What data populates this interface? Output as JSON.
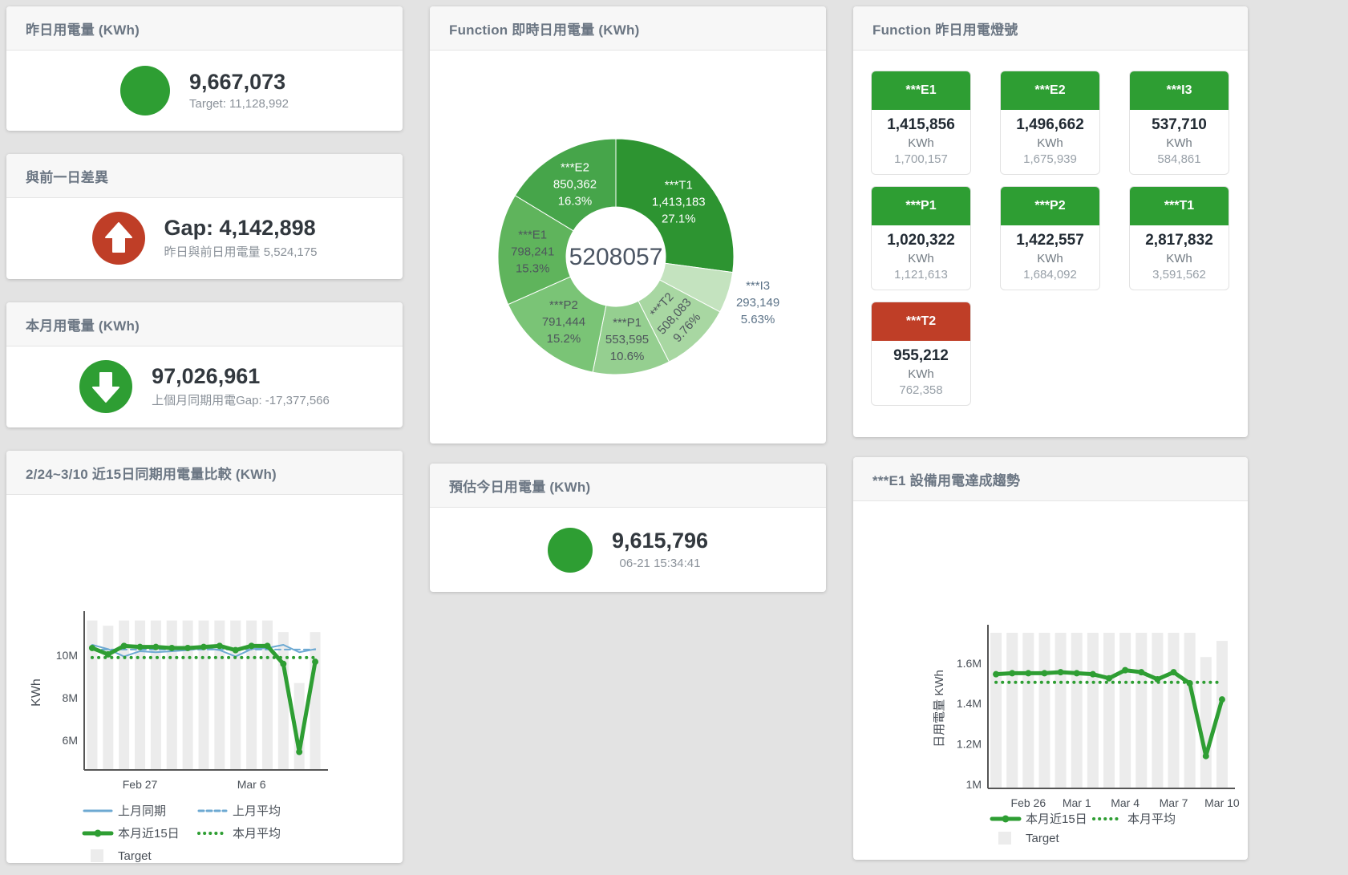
{
  "colors": {
    "green": "#2e9e33",
    "red": "#bf3e27",
    "bar_gray": "#ececec",
    "blue": "#6da9d2",
    "axis": "#555555",
    "tick_text": "#4a5058"
  },
  "cards": {
    "yesterday": {
      "title": "昨日用電量 (KWh)",
      "value": "9,667,073",
      "subtitle": "Target: 11,128,992",
      "indicator": "green-circle"
    },
    "gap": {
      "title": "與前一日差異",
      "value": "Gap: 4,142,898",
      "subtitle": "昨日與前日用電量 5,524,175",
      "indicator": "red-up-arrow"
    },
    "month": {
      "title": "本月用電量 (KWh)",
      "value": "97,026,961",
      "subtitle": "上個月同期用電Gap: -17,377,566",
      "indicator": "green-down-arrow"
    },
    "estimate": {
      "title": "預估今日用電量 (KWh)",
      "value": "9,615,796",
      "subtitle": "06-21 15:34:41",
      "indicator": "green-circle"
    }
  },
  "donut": {
    "title": "Function 即時日用電量 (KWh)",
    "center_total": "5208057",
    "segments": [
      {
        "name": "***T1",
        "value": "1,413,183",
        "pct": 27.1,
        "pct_label": "27.1%",
        "color": "#2d9431",
        "label_color": "#ffffff",
        "label_pos": "inside",
        "rotate": 0
      },
      {
        "name": "***I3",
        "value": "293,149",
        "pct": 5.63,
        "pct_label": "5.63%",
        "color": "#c4e3bf",
        "label_color": "#5b7287",
        "label_pos": "outside",
        "rotate": 0
      },
      {
        "name": "***T2",
        "value": "508,083",
        "pct": 9.76,
        "pct_label": "9.76%",
        "color": "#a8d7a2",
        "label_color": "#4e565c",
        "label_pos": "inside",
        "rotate": -48
      },
      {
        "name": "***P1",
        "value": "553,595",
        "pct": 10.6,
        "pct_label": "10.6%",
        "color": "#95cf90",
        "label_color": "#4e565c",
        "label_pos": "inside",
        "rotate": 0
      },
      {
        "name": "***P2",
        "value": "791,444",
        "pct": 15.2,
        "pct_label": "15.2%",
        "color": "#7ac476",
        "label_color": "#4e565c",
        "label_pos": "inside",
        "rotate": 0
      },
      {
        "name": "***E1",
        "value": "798,241",
        "pct": 15.3,
        "pct_label": "15.3%",
        "color": "#5fb45c",
        "label_color": "#4e565c",
        "label_pos": "inside",
        "rotate": 0
      },
      {
        "name": "***E2",
        "value": "850,362",
        "pct": 16.3,
        "pct_label": "16.3%",
        "color": "#46a54a",
        "label_color": "#ffffff",
        "label_pos": "inside",
        "rotate": 0
      }
    ]
  },
  "lights": {
    "title": "Function 昨日用電燈號",
    "status_colors": {
      "green": "#2e9e33",
      "red": "#bf3e27"
    },
    "tiles": [
      {
        "name": "***E1",
        "value": "1,415,856",
        "unit": "KWh",
        "target": "1,700,157",
        "status": "green"
      },
      {
        "name": "***E2",
        "value": "1,496,662",
        "unit": "KWh",
        "target": "1,675,939",
        "status": "green"
      },
      {
        "name": "***I3",
        "value": "537,710",
        "unit": "KWh",
        "target": "584,861",
        "status": "green"
      },
      {
        "name": "***P1",
        "value": "1,020,322",
        "unit": "KWh",
        "target": "1,121,613",
        "status": "green"
      },
      {
        "name": "***P2",
        "value": "1,422,557",
        "unit": "KWh",
        "target": "1,684,092",
        "status": "green"
      },
      {
        "name": "***T1",
        "value": "2,817,832",
        "unit": "KWh",
        "target": "3,591,562",
        "status": "green"
      },
      {
        "name": "***T2",
        "value": "955,212",
        "unit": "KWh",
        "target": "762,358",
        "status": "red"
      }
    ]
  },
  "chart_data": [
    {
      "id": "compare15",
      "type": "line+bar",
      "title": "2/24~3/10 近15日同期用電量比較 (KWh)",
      "ylabel": "KWh",
      "n_points": 15,
      "ylim": [
        4600000,
        11900000
      ],
      "yticks": [
        {
          "value": 6000000,
          "label": "6M"
        },
        {
          "value": 8000000,
          "label": "8M"
        },
        {
          "value": 10000000,
          "label": "10M"
        }
      ],
      "xticks": [
        {
          "index": 3,
          "label": "Feb 27"
        },
        {
          "index": 10,
          "label": "Mar 6"
        }
      ],
      "series": [
        {
          "name": "Target",
          "type": "bar",
          "color": "#ececec",
          "values": [
            11650000,
            11400000,
            11650000,
            11650000,
            11650000,
            11650000,
            11650000,
            11650000,
            11650000,
            11650000,
            11650000,
            11650000,
            11100000,
            8700000,
            11100000
          ]
        },
        {
          "name": "上月同期",
          "type": "line",
          "style": "solid",
          "color": "#6da9d2",
          "width": 2,
          "values": [
            10500000,
            10300000,
            9950000,
            10200000,
            10150000,
            10200000,
            10250000,
            10350000,
            10250000,
            9950000,
            10300000,
            10350000,
            10500000,
            10150000,
            10300000
          ]
        },
        {
          "name": "上月平均",
          "type": "line",
          "style": "dashed",
          "color": "#6da9d2",
          "width": 2,
          "const": 10280000
        },
        {
          "name": "本月近15日",
          "type": "line",
          "style": "solid",
          "color": "#2e9e33",
          "width": 5,
          "marker": true,
          "values": [
            10350000,
            10050000,
            10450000,
            10400000,
            10400000,
            10350000,
            10350000,
            10400000,
            10450000,
            10250000,
            10450000,
            10450000,
            9600000,
            5450000,
            9700000
          ]
        },
        {
          "name": "本月平均",
          "type": "line",
          "style": "dotted",
          "color": "#2e9e33",
          "width": 4,
          "const": 9900000
        }
      ],
      "legend": [
        [
          "上月同期",
          "上月平均"
        ],
        [
          "本月近15日",
          "本月平均"
        ],
        [
          "Target"
        ]
      ]
    },
    {
      "id": "e1trend",
      "type": "line+bar",
      "title": "***E1 設備用電達成趨勢",
      "ylabel": "日用電量 KWh",
      "n_points": 15,
      "ylim": [
        980000,
        1770000
      ],
      "yticks": [
        {
          "value": 1000000,
          "label": "1M"
        },
        {
          "value": 1200000,
          "label": "1.2M"
        },
        {
          "value": 1400000,
          "label": "1.4M"
        },
        {
          "value": 1600000,
          "label": "1.6M"
        }
      ],
      "xticks": [
        {
          "index": 2,
          "label": "Feb 26"
        },
        {
          "index": 5,
          "label": "Mar 1"
        },
        {
          "index": 8,
          "label": "Mar 4"
        },
        {
          "index": 11,
          "label": "Mar 7"
        },
        {
          "index": 14,
          "label": "Mar 10"
        }
      ],
      "series": [
        {
          "name": "Target",
          "type": "bar",
          "color": "#ececec",
          "values": [
            1750000,
            1750000,
            1750000,
            1750000,
            1750000,
            1750000,
            1750000,
            1750000,
            1750000,
            1750000,
            1750000,
            1750000,
            1750000,
            1630000,
            1710000
          ]
        },
        {
          "name": "本月近15日",
          "type": "line",
          "style": "solid",
          "color": "#2e9e33",
          "width": 5,
          "marker": true,
          "values": [
            1545000,
            1550000,
            1550000,
            1550000,
            1555000,
            1550000,
            1545000,
            1525000,
            1565000,
            1555000,
            1520000,
            1555000,
            1500000,
            1140000,
            1420000
          ]
        },
        {
          "name": "本月平均",
          "type": "line",
          "style": "dotted",
          "color": "#2e9e33",
          "width": 4,
          "const": 1505000
        }
      ],
      "legend": [
        [
          "本月近15日",
          "本月平均"
        ],
        [
          "Target"
        ]
      ]
    }
  ]
}
